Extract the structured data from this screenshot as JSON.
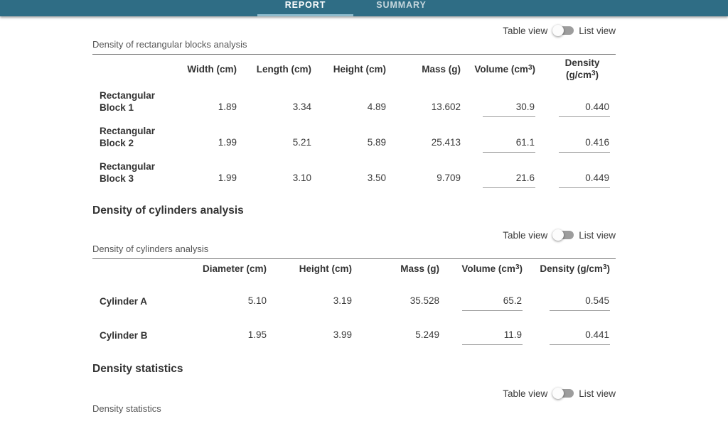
{
  "colors": {
    "app-bar-bg": "#2f6d85",
    "tab-indicator": "#8fbccd"
  },
  "app_bar": {
    "tabs": [
      {
        "label": "REPORT",
        "active": true
      },
      {
        "label": "SUMMARY",
        "active": false
      }
    ]
  },
  "view_toggle": {
    "table_label": "Table view",
    "list_label": "List view",
    "state": "list"
  },
  "rect_section": {
    "caption": "Density of rectangular blocks analysis",
    "columns": [
      "Width (cm)",
      "Length (cm)",
      "Height (cm)",
      "Mass (g)",
      "Volume (cm³)",
      "Density (g/cm³)"
    ],
    "rows": [
      {
        "label": "Rectangular Block 1",
        "width": "1.89",
        "length": "3.34",
        "height": "4.89",
        "mass": "13.602",
        "volume": "30.9",
        "density": "0.440"
      },
      {
        "label": "Rectangular Block 2",
        "width": "1.99",
        "length": "5.21",
        "height": "5.89",
        "mass": "25.413",
        "volume": "61.1",
        "density": "0.416"
      },
      {
        "label": "Rectangular Block 3",
        "width": "1.99",
        "length": "3.10",
        "height": "3.50",
        "mass": "9.709",
        "volume": "21.6",
        "density": "0.449"
      }
    ]
  },
  "cylinder_section": {
    "heading": "Density of cylinders analysis",
    "caption": "Density of cylinders analysis",
    "columns": [
      "Diameter (cm)",
      "Height (cm)",
      "Mass (g)",
      "Volume (cm³)",
      "Density (g/cm³)"
    ],
    "rows": [
      {
        "label": "Cylinder A",
        "diameter": "5.10",
        "height": "3.19",
        "mass": "35.528",
        "volume": "65.2",
        "density": "0.545"
      },
      {
        "label": "Cylinder B",
        "diameter": "1.95",
        "height": "3.99",
        "mass": "5.249",
        "volume": "11.9",
        "density": "0.441"
      }
    ]
  },
  "stats_section": {
    "heading": "Density statistics",
    "caption": "Density statistics"
  }
}
